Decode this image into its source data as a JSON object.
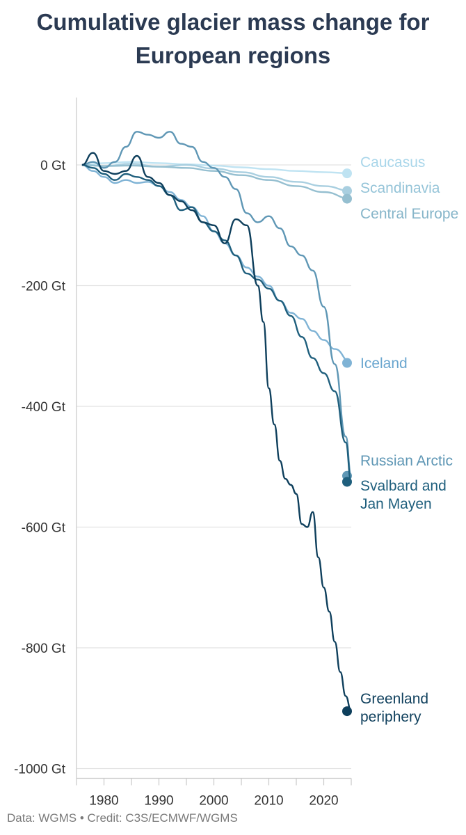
{
  "chart_data": {
    "type": "line",
    "title": "Cumulative glacier mass change for European regions",
    "xlabel": "",
    "ylabel": "",
    "xlim": [
      1975,
      2025
    ],
    "ylim": [
      -1000,
      100
    ],
    "x_ticks": [
      1980,
      1990,
      2000,
      2010,
      2020
    ],
    "y_ticks": [
      0,
      -200,
      -400,
      -600,
      -800,
      -1000
    ],
    "y_tick_labels": [
      "0 Gt",
      "-200 Gt",
      "-400 Gt",
      "-600 Gt",
      "-800 Gt",
      "-1000 Gt"
    ],
    "grid": "horizontal",
    "legend": "direct labels at line ends",
    "series": [
      {
        "name": "Caucasus",
        "color": "#bfe3f2",
        "x": [
          1976,
          1980,
          1985,
          1990,
          1995,
          2000,
          2005,
          2010,
          2015,
          2020,
          2025
        ],
        "y": [
          0,
          3,
          5,
          3,
          1,
          -1,
          -4,
          -7,
          -10,
          -12,
          -14
        ]
      },
      {
        "name": "Scandinavia",
        "color": "#a9cfe0",
        "x": [
          1976,
          1980,
          1985,
          1990,
          1995,
          2000,
          2005,
          2010,
          2015,
          2020,
          2025
        ],
        "y": [
          0,
          -2,
          2,
          -3,
          0,
          -6,
          -12,
          -20,
          -28,
          -35,
          -43
        ]
      },
      {
        "name": "Central Europe",
        "color": "#95bfd0",
        "x": [
          1976,
          1980,
          1985,
          1990,
          1995,
          2000,
          2005,
          2010,
          2015,
          2020,
          2025
        ],
        "y": [
          0,
          -2,
          -1,
          -3,
          -5,
          -10,
          -17,
          -25,
          -35,
          -45,
          -56
        ]
      },
      {
        "name": "Iceland",
        "color": "#7fb3d5",
        "x": [
          1976,
          1978,
          1980,
          1982,
          1984,
          1986,
          1988,
          1990,
          1992,
          1994,
          1996,
          1998,
          2000,
          2002,
          2004,
          2006,
          2008,
          2010,
          2012,
          2014,
          2016,
          2018,
          2020,
          2022,
          2025
        ],
        "y": [
          0,
          -10,
          -20,
          -30,
          -25,
          -30,
          -28,
          -35,
          -45,
          -58,
          -70,
          -85,
          -110,
          -130,
          -150,
          -170,
          -185,
          -200,
          -225,
          -245,
          -255,
          -275,
          -290,
          -305,
          -328
        ]
      },
      {
        "name": "Russian Arctic",
        "color": "#5f97b5",
        "x": [
          1976,
          1978,
          1980,
          1982,
          1984,
          1986,
          1988,
          1990,
          1992,
          1994,
          1996,
          1998,
          2000,
          2002,
          2004,
          2006,
          2008,
          2010,
          2012,
          2014,
          2016,
          2018,
          2020,
          2022,
          2024,
          2025
        ],
        "y": [
          0,
          5,
          -5,
          5,
          30,
          55,
          50,
          45,
          55,
          35,
          30,
          5,
          -5,
          -20,
          -40,
          -80,
          -95,
          -85,
          -105,
          -135,
          -150,
          -175,
          -235,
          -330,
          -450,
          -515
        ]
      },
      {
        "name": "Svalbard and Jan Mayen",
        "color": "#1f5f7d",
        "x": [
          1976,
          1978,
          1980,
          1982,
          1984,
          1986,
          1988,
          1990,
          1992,
          1994,
          1996,
          1998,
          2000,
          2002,
          2004,
          2006,
          2008,
          2010,
          2012,
          2014,
          2016,
          2018,
          2020,
          2022,
          2024,
          2025
        ],
        "y": [
          0,
          -5,
          -15,
          -25,
          -15,
          -20,
          -25,
          -35,
          -50,
          -75,
          -70,
          -95,
          -110,
          -125,
          -150,
          -180,
          -190,
          -205,
          -225,
          -250,
          -285,
          -320,
          -345,
          -375,
          -460,
          -525
        ]
      },
      {
        "name": "Greenland periphery",
        "color": "#0e3f5c",
        "x": [
          1976,
          1978,
          1980,
          1982,
          1984,
          1986,
          1988,
          1990,
          1992,
          1994,
          1996,
          1998,
          2000,
          2002,
          2004,
          2006,
          2008,
          2009,
          2010,
          2011,
          2012,
          2013,
          2014,
          2015,
          2016,
          2017,
          2018,
          2019,
          2020,
          2021,
          2022,
          2023,
          2024,
          2025
        ],
        "y": [
          0,
          20,
          -10,
          -15,
          -10,
          15,
          -20,
          -30,
          -50,
          -60,
          -75,
          -95,
          -100,
          -130,
          -90,
          -100,
          -200,
          -260,
          -370,
          -430,
          -490,
          -520,
          -530,
          -545,
          -595,
          -600,
          -575,
          -650,
          -700,
          -740,
          -790,
          -840,
          -880,
          -905
        ]
      }
    ]
  },
  "title": "Cumulative glacier mass change for European regions",
  "title_line1": "Cumulative glacier mass change for",
  "title_line2": "European regions",
  "label_lines": {
    "Caucasus": [
      "Caucasus"
    ],
    "Scandinavia": [
      "Scandinavia"
    ],
    "Central Europe": [
      "Central Europe"
    ],
    "Iceland": [
      "Iceland"
    ],
    "Russian Arctic": [
      "Russian Arctic"
    ],
    "Svalbard and Jan Mayen": [
      "Svalbard and",
      "Jan Mayen"
    ],
    "Greenland periphery": [
      "Greenland",
      "periphery"
    ]
  },
  "credit": "Data: WGMS • Credit: C3S/ECMWF/WGMS"
}
